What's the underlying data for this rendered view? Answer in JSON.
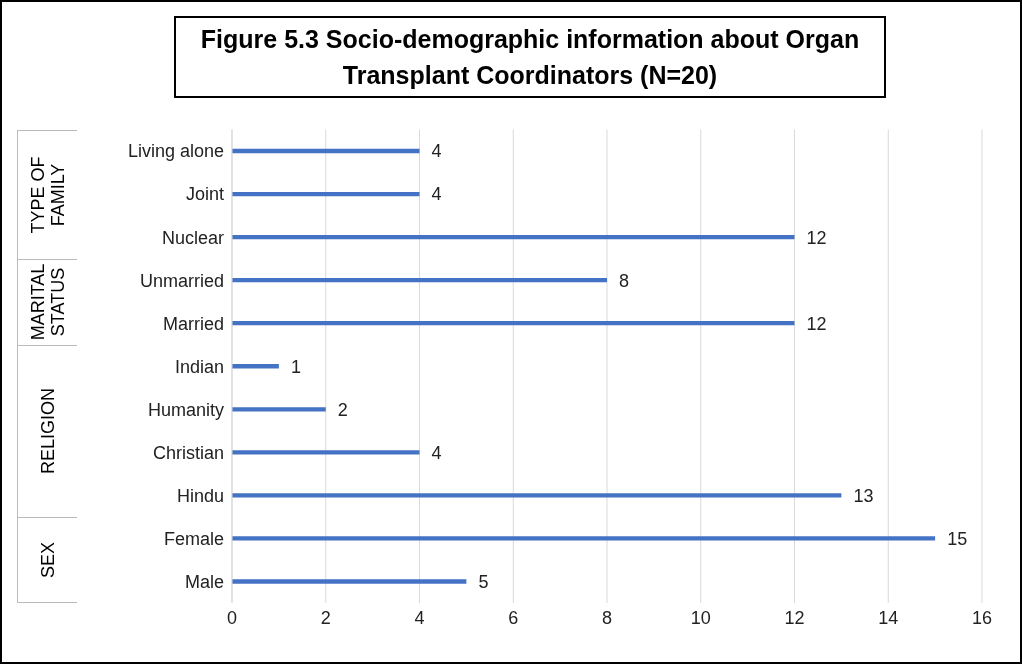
{
  "chart_data": {
    "type": "bar",
    "orientation": "horizontal",
    "title": "Figure 5.3 Socio-demographic information about Organ Transplant Coordinators (N=20)",
    "categories": [
      "Living alone",
      "Joint",
      "Nuclear",
      "Unmarried",
      "Married",
      "Indian",
      "Humanity",
      "Christian",
      "Hindu",
      "Female",
      "Male"
    ],
    "values": [
      4,
      4,
      12,
      8,
      12,
      1,
      2,
      4,
      13,
      15,
      5
    ],
    "color": "#4472c4",
    "xlim": [
      0,
      16
    ],
    "xticks": [
      0,
      2,
      4,
      6,
      8,
      10,
      12,
      14,
      16
    ],
    "grid": "x",
    "data_labels": true,
    "annotations": [
      "TYPE OF FAMILY",
      "MARITAL STATUS",
      "RELIGION",
      "SEX"
    ]
  }
}
